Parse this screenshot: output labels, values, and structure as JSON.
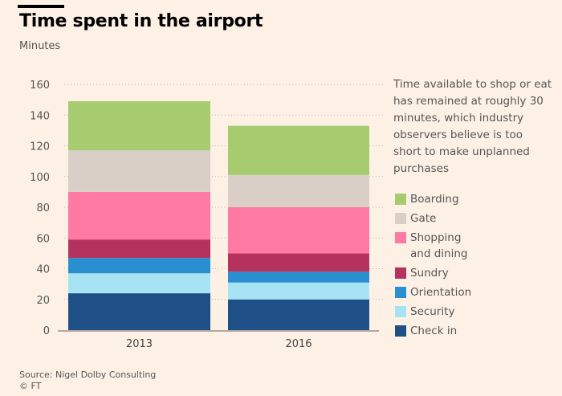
{
  "header": {
    "title": "Time spent in the airport",
    "subtitle": "Minutes"
  },
  "note": "Time available to shop or eat has remained at roughly 30 minutes, which industry observers believe is too short to make unplanned purchases",
  "footer": {
    "source": "Source: Nigel Dolby Consulting",
    "credit": "© FT"
  },
  "chart_data": {
    "type": "bar",
    "stacked": true,
    "categories": [
      "2013",
      "2016"
    ],
    "ylim": [
      0,
      160
    ],
    "yticks": [
      0,
      20,
      40,
      60,
      80,
      100,
      120,
      140,
      160
    ],
    "grid": true,
    "legend_position": "right",
    "series": [
      {
        "name": "Check in",
        "color": "#1f4f87",
        "values": [
          24,
          20
        ]
      },
      {
        "name": "Security",
        "color": "#a6e3f4",
        "values": [
          13,
          11
        ]
      },
      {
        "name": "Orientation",
        "color": "#2a8fd0",
        "values": [
          10,
          7
        ]
      },
      {
        "name": "Sundry",
        "color": "#b5325f",
        "values": [
          12,
          12
        ]
      },
      {
        "name": "Shopping and dining",
        "color": "#ff7aa3",
        "values": [
          31,
          30
        ]
      },
      {
        "name": "Gate",
        "color": "#d9cfc7",
        "values": [
          27,
          21
        ]
      },
      {
        "name": "Boarding",
        "color": "#a6cc6f",
        "values": [
          32,
          32
        ]
      }
    ]
  }
}
